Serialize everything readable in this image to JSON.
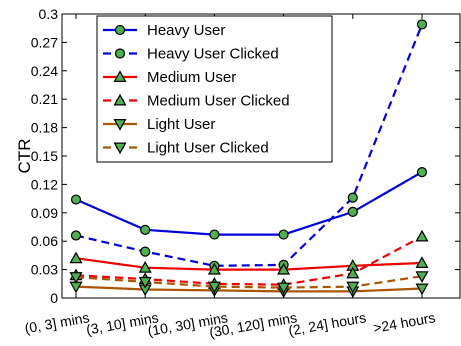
{
  "chart_data": {
    "type": "line",
    "title": "",
    "xlabel": "",
    "ylabel": "CTR",
    "categories": [
      "(0, 3] mins",
      "(3, 10] mins",
      "(10, 30] mins",
      "(30, 120] mins",
      "(2, 24] hours",
      ">24 hours"
    ],
    "ylim": [
      0,
      0.3
    ],
    "yticks": [
      "0",
      "0.03",
      "0.06",
      "0.09",
      "0.12",
      "0.15",
      "0.18",
      "0.21",
      "0.24",
      "0.27",
      "0.3"
    ],
    "grid": false,
    "legend_position": "top-left",
    "series": [
      {
        "name": "Heavy User",
        "values": [
          0.104,
          0.072,
          0.067,
          0.067,
          0.091,
          0.133
        ],
        "color": "#0000dd",
        "dash": "solid",
        "marker": "circle"
      },
      {
        "name": "Heavy User Clicked",
        "values": [
          0.066,
          0.049,
          0.034,
          0.035,
          0.106,
          0.289
        ],
        "color": "#0000dd",
        "dash": "dashed",
        "marker": "circle"
      },
      {
        "name": "Medium User",
        "values": [
          0.042,
          0.032,
          0.03,
          0.03,
          0.034,
          0.037
        ],
        "color": "#ee0000",
        "dash": "solid",
        "marker": "triangle-up"
      },
      {
        "name": "Medium User Clicked",
        "values": [
          0.024,
          0.02,
          0.015,
          0.014,
          0.026,
          0.065
        ],
        "color": "#ee0000",
        "dash": "dashed",
        "marker": "triangle-up"
      },
      {
        "name": "Light User",
        "values": [
          0.012,
          0.009,
          0.008,
          0.007,
          0.007,
          0.01
        ],
        "color": "#aa5500",
        "dash": "solid",
        "marker": "triangle-down"
      },
      {
        "name": "Light User Clicked",
        "values": [
          0.022,
          0.017,
          0.012,
          0.011,
          0.012,
          0.023
        ],
        "color": "#aa5500",
        "dash": "dashed",
        "marker": "triangle-down"
      }
    ]
  }
}
